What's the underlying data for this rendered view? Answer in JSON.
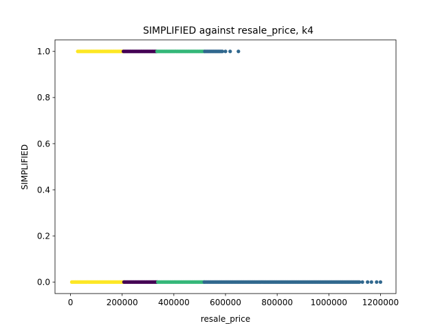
{
  "chart_data": {
    "type": "scatter",
    "title": "SIMPLIFIED against resale_price, k4",
    "xlabel": "resale_price",
    "ylabel": "SIMPLIFIED",
    "xlim": [
      -60000,
      1260000
    ],
    "ylim": [
      -0.05,
      1.05
    ],
    "xticks": [
      0,
      200000,
      400000,
      600000,
      800000,
      1000000,
      1200000
    ],
    "xtick_labels": [
      "0",
      "200000",
      "400000",
      "600000",
      "800000",
      "1000000",
      "1200000"
    ],
    "yticks": [
      0.0,
      0.2,
      0.4,
      0.6,
      0.8,
      1.0
    ],
    "ytick_labels": [
      "0.0",
      "0.2",
      "0.4",
      "0.6",
      "0.8",
      "1.0"
    ],
    "grid": false,
    "legend": "none",
    "clusters": [
      {
        "color": "#fde725",
        "points": [
          {
            "y": 1,
            "x_range": [
              28000,
              205000
            ]
          },
          {
            "y": 0,
            "x_range": [
              5000,
              207000
            ]
          }
        ]
      },
      {
        "color": "#440154",
        "points": [
          {
            "y": 1,
            "x_range": [
              205000,
              335000
            ]
          },
          {
            "y": 0,
            "x_range": [
              207000,
              338000
            ]
          }
        ]
      },
      {
        "color": "#35b779",
        "points": [
          {
            "y": 1,
            "x_range": [
              335000,
              520000
            ]
          },
          {
            "y": 0,
            "x_range": [
              338000,
              518000
            ]
          }
        ]
      },
      {
        "color": "#31688e",
        "points": [
          {
            "y": 1,
            "x_range": [
              520000,
              590000
            ]
          },
          {
            "y": 0,
            "x_range": [
              518000,
              1120000
            ]
          }
        ],
        "extra_points": [
          {
            "x": 600000,
            "y": 1
          },
          {
            "x": 618000,
            "y": 1
          },
          {
            "x": 650000,
            "y": 1
          },
          {
            "x": 1130000,
            "y": 0
          },
          {
            "x": 1150000,
            "y": 0
          },
          {
            "x": 1165000,
            "y": 0
          },
          {
            "x": 1185000,
            "y": 0
          },
          {
            "x": 1200000,
            "y": 0
          }
        ]
      }
    ]
  }
}
